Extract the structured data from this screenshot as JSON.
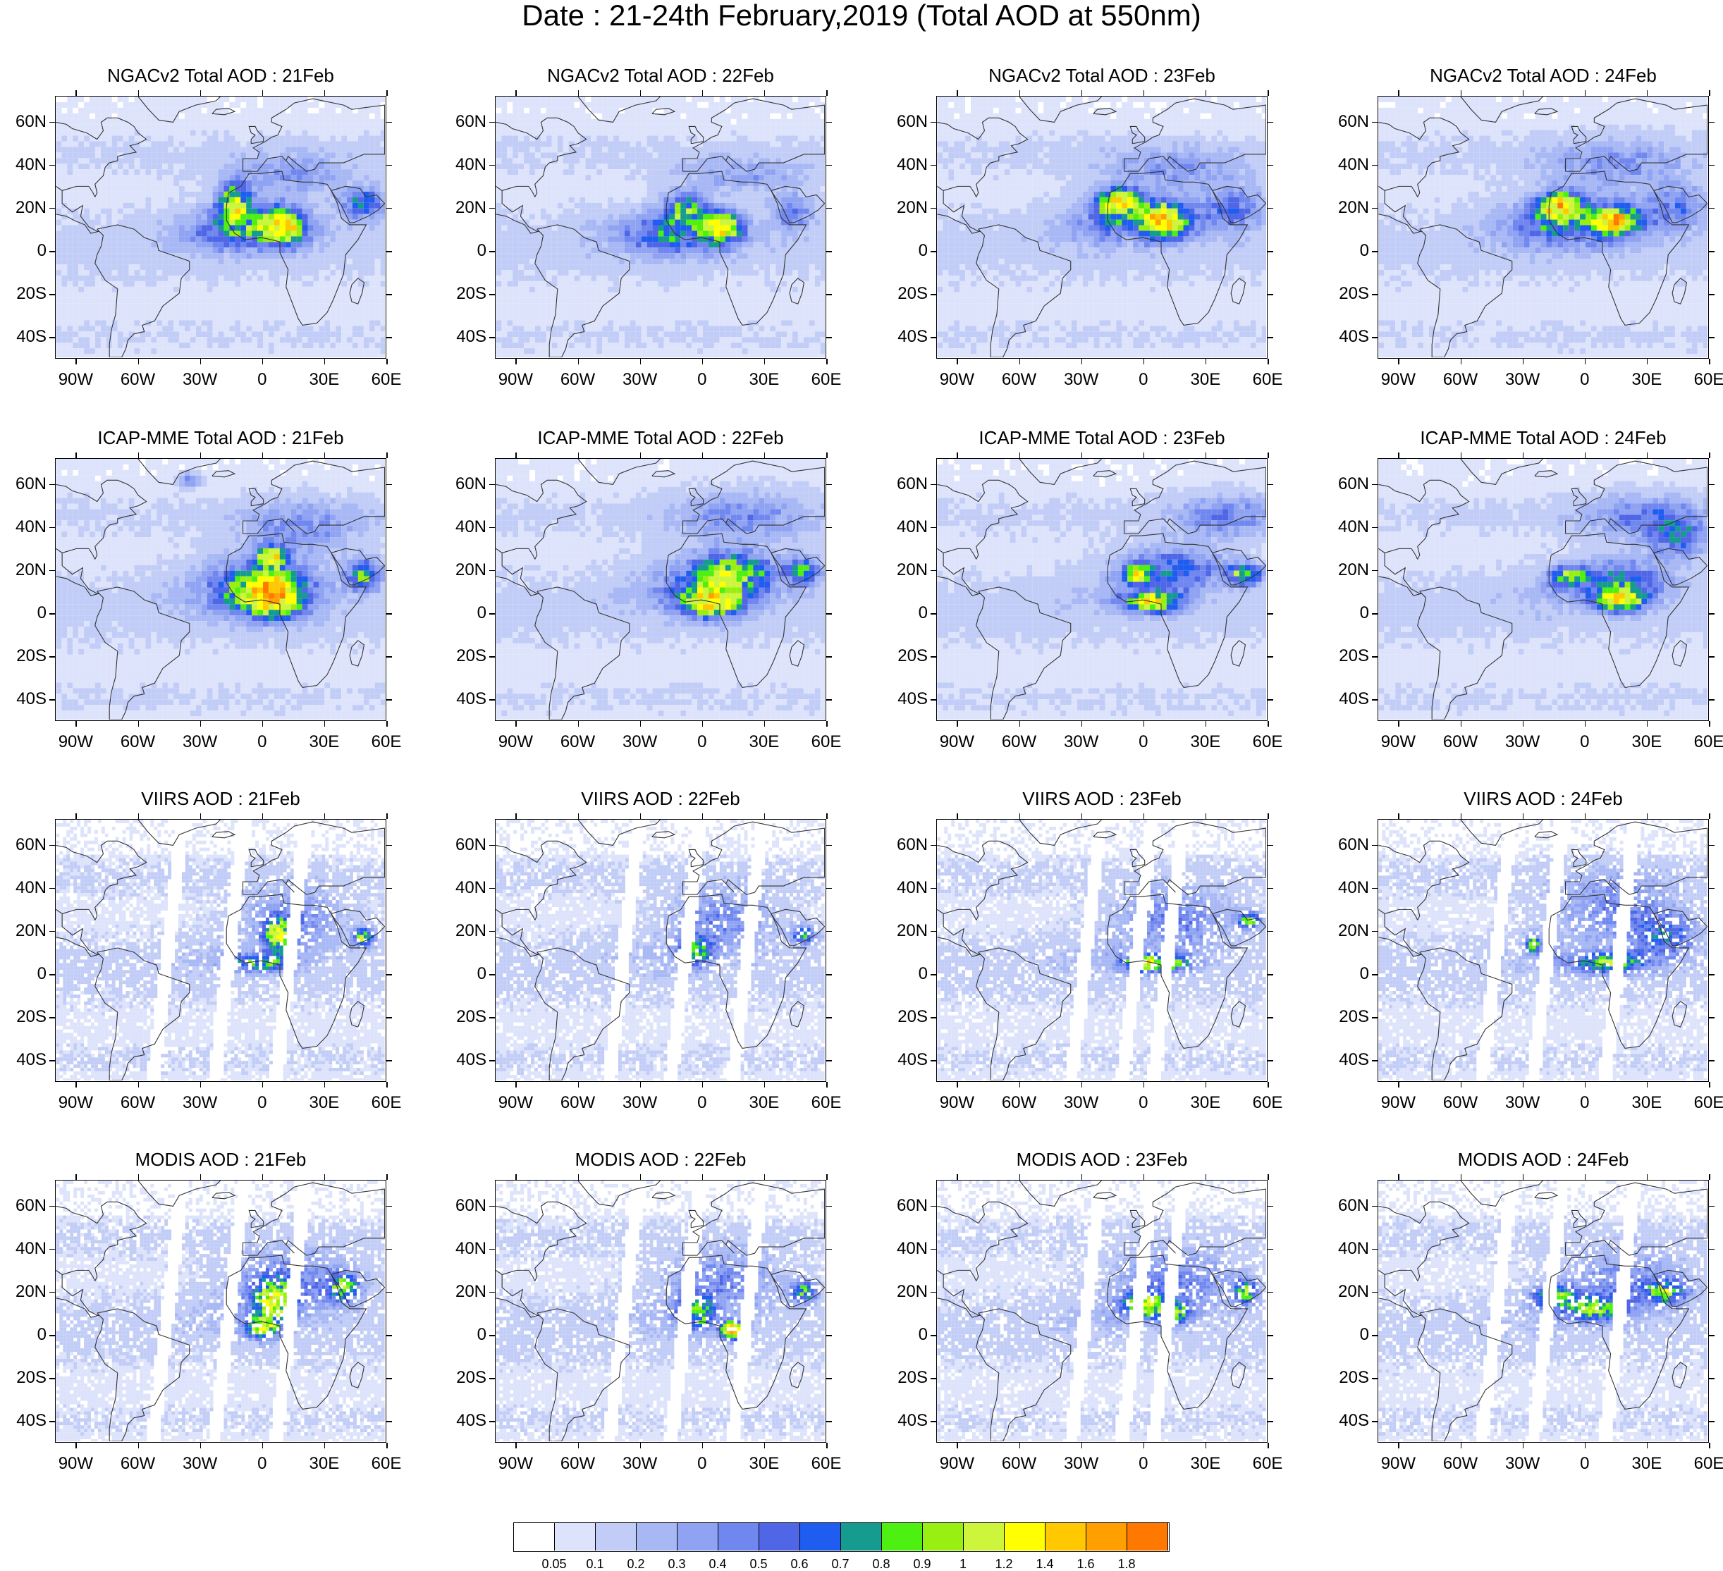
{
  "title": "Date : 21-24th February,2019 (Total AOD at 550nm)",
  "lon_labels": [
    "90W",
    "60W",
    "30W",
    "0",
    "30E",
    "60E"
  ],
  "lat_labels": [
    "60N",
    "40N",
    "20N",
    "0",
    "20S",
    "40S"
  ],
  "rows": [
    {
      "name": "NGACv2",
      "panels": [
        {
          "title": "NGACv2 Total AOD : 21Feb"
        },
        {
          "title": "NGACv2 Total AOD : 22Feb"
        },
        {
          "title": "NGACv2 Total AOD : 23Feb"
        },
        {
          "title": "NGACv2 Total AOD : 24Feb"
        }
      ]
    },
    {
      "name": "ICAP-MME",
      "panels": [
        {
          "title": "ICAP-MME Total AOD : 21Feb"
        },
        {
          "title": "ICAP-MME Total AOD : 22Feb"
        },
        {
          "title": "ICAP-MME Total AOD : 23Feb"
        },
        {
          "title": "ICAP-MME Total AOD : 24Feb"
        }
      ]
    },
    {
      "name": "VIIRS",
      "panels": [
        {
          "title": "VIIRS AOD : 21Feb"
        },
        {
          "title": "VIIRS AOD : 22Feb"
        },
        {
          "title": "VIIRS AOD : 23Feb"
        },
        {
          "title": "VIIRS AOD : 24Feb"
        }
      ]
    },
    {
      "name": "MODIS",
      "panels": [
        {
          "title": "MODIS AOD : 21Feb"
        },
        {
          "title": "MODIS AOD : 22Feb"
        },
        {
          "title": "MODIS AOD : 23Feb"
        },
        {
          "title": "MODIS AOD : 24Feb"
        }
      ]
    }
  ],
  "colorbar": {
    "labels": [
      "0.05",
      "0.1",
      "0.2",
      "0.3",
      "0.4",
      "0.5",
      "0.6",
      "0.7",
      "0.8",
      "0.9",
      "1",
      "1.2",
      "1.4",
      "1.6",
      "1.8"
    ],
    "colors": [
      "#ffffff",
      "#dde3fb",
      "#c2cdf7",
      "#a8b8f5",
      "#8fa3f2",
      "#7087ef",
      "#4f66e6",
      "#1f5cf0",
      "#169c8f",
      "#4ef012",
      "#98f012",
      "#ccf53c",
      "#ffff00",
      "#ffc800",
      "#ffa000",
      "#ff7800",
      "#ff2800"
    ]
  }
}
